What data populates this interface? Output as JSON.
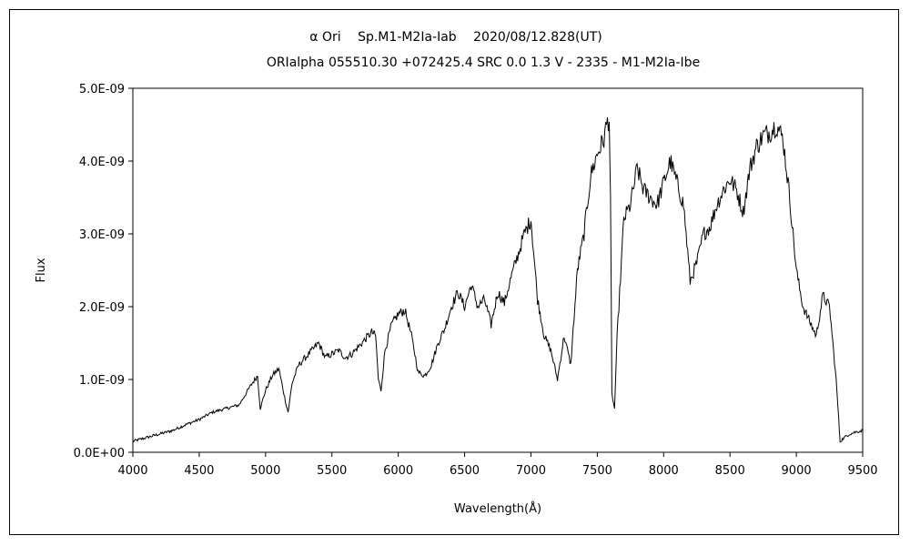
{
  "chart_data": {
    "type": "line",
    "title": "α Ori　 Sp.M1-M2Ia-Iab　 2020/08/12.828(UT)",
    "subtitle": "ORIalpha 055510.30 +072425.4 SRC 0.0 1.3 V - 2335 - M1-M2Ia-Ibe",
    "xlabel": "Wavelength(Å)",
    "ylabel": "Flux",
    "xlim": [
      4000,
      9500
    ],
    "ylim": [
      0,
      5e-09
    ],
    "x_ticks": [
      4000,
      4500,
      5000,
      5500,
      6000,
      6500,
      7000,
      7500,
      8000,
      8500,
      9000,
      9500
    ],
    "x_tick_labels": [
      "4000",
      "4500",
      "5000",
      "5500",
      "6000",
      "6500",
      "7000",
      "7500",
      "8000",
      "8500",
      "9000",
      "9500"
    ],
    "y_ticks": [
      0,
      1e-09,
      2e-09,
      3e-09,
      4e-09,
      5e-09
    ],
    "y_tick_labels": [
      "0.0E+00",
      "1.0E-09",
      "2.0E-09",
      "3.0E-09",
      "4.0E-09",
      "5.0E-09"
    ],
    "grid": false,
    "line_color": "#000000",
    "series": [
      {
        "x": [
          4000,
          4100,
          4200,
          4300,
          4400,
          4500,
          4600,
          4700,
          4800,
          4850,
          4900,
          4940,
          4960,
          5000,
          5050,
          5100,
          5150,
          5170,
          5200,
          5250,
          5300,
          5350,
          5400,
          5450,
          5500,
          5550,
          5600,
          5650,
          5700,
          5750,
          5800,
          5830,
          5850,
          5870,
          5900,
          5950,
          6000,
          6050,
          6100,
          6150,
          6200,
          6250,
          6300,
          6350,
          6400,
          6450,
          6500,
          6550,
          6600,
          6650,
          6700,
          6750,
          6800,
          6850,
          6900,
          6950,
          7000,
          7050,
          7100,
          7150,
          7200,
          7250,
          7300,
          7350,
          7400,
          7450,
          7500,
          7550,
          7570,
          7590,
          7600,
          7610,
          7630,
          7650,
          7700,
          7750,
          7800,
          7850,
          7900,
          7950,
          8000,
          8050,
          8100,
          8150,
          8200,
          8250,
          8300,
          8350,
          8400,
          8450,
          8500,
          8550,
          8600,
          8650,
          8700,
          8750,
          8800,
          8850,
          8900,
          8950,
          9000,
          9050,
          9100,
          9150,
          9200,
          9250,
          9300,
          9330,
          9360,
          9400,
          9450,
          9500
        ],
        "y": [
          1.5e-10,
          2e-10,
          2.5e-10,
          3e-10,
          3.8e-10,
          4.5e-10,
          5.5e-10,
          6e-10,
          6.5e-10,
          8e-10,
          9.5e-10,
          1.05e-09,
          6e-10,
          8.5e-10,
          1.05e-09,
          1.15e-09,
          7e-10,
          5.5e-10,
          9.5e-10,
          1.2e-09,
          1.3e-09,
          1.4e-09,
          1.5e-09,
          1.3e-09,
          1.35e-09,
          1.4e-09,
          1.3e-09,
          1.35e-09,
          1.45e-09,
          1.55e-09,
          1.65e-09,
          1.6e-09,
          1e-09,
          8.5e-10,
          1.4e-09,
          1.75e-09,
          1.9e-09,
          1.95e-09,
          1.6e-09,
          1.1e-09,
          1.05e-09,
          1.2e-09,
          1.5e-09,
          1.7e-09,
          2e-09,
          2.2e-09,
          2e-09,
          2.3e-09,
          2e-09,
          2.1e-09,
          1.75e-09,
          2.2e-09,
          2.05e-09,
          2.4e-09,
          2.7e-09,
          3e-09,
          3.2e-09,
          2.1e-09,
          1.6e-09,
          1.4e-09,
          1e-09,
          1.6e-09,
          1.2e-09,
          2.5e-09,
          3e-09,
          3.8e-09,
          4.1e-09,
          4.3e-09,
          4.5e-09,
          4.6e-09,
          3.4e-09,
          8e-10,
          6e-10,
          1.6e-09,
          3.2e-09,
          3.4e-09,
          3.9e-09,
          3.6e-09,
          3.5e-09,
          3.4e-09,
          3.7e-09,
          4e-09,
          3.7e-09,
          3.4e-09,
          2.35e-09,
          2.6e-09,
          3e-09,
          3.1e-09,
          3.4e-09,
          3.6e-09,
          3.75e-09,
          3.6e-09,
          3.3e-09,
          3.9e-09,
          4.2e-09,
          4.35e-09,
          4.4e-09,
          4.5e-09,
          4.3e-09,
          3.5e-09,
          2.5e-09,
          2e-09,
          1.8e-09,
          1.6e-09,
          2.15e-09,
          2e-09,
          1e-09,
          1.5e-10,
          2e-10,
          2.5e-10,
          2.8e-10,
          3e-10
        ]
      }
    ]
  }
}
